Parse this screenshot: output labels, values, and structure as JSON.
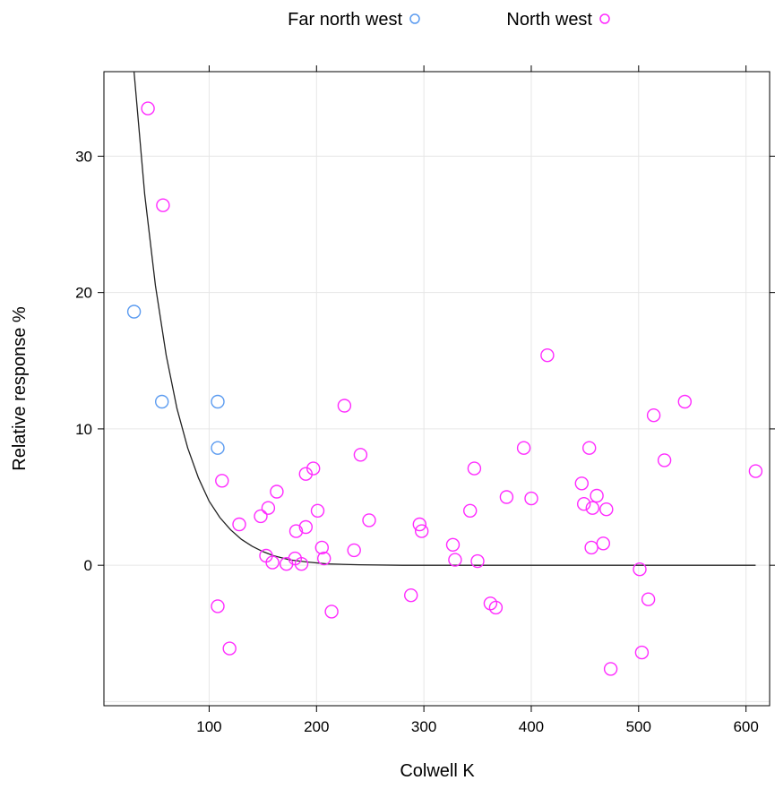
{
  "chart_data": {
    "type": "scatter",
    "xlabel": "Colwell K",
    "ylabel": "Relative response %",
    "xlim": [
      2,
      622
    ],
    "ylim": [
      -10.3,
      36.2
    ],
    "x_ticks": [
      100,
      200,
      300,
      400,
      500,
      600
    ],
    "y_ticks": [
      0,
      10,
      20,
      30
    ],
    "x_tick_labels": [
      "100",
      "200",
      "300",
      "400",
      "500",
      "600"
    ],
    "y_tick_labels": [
      "0",
      "10",
      "20",
      "30"
    ],
    "grid": true,
    "legend_position": "top",
    "series": [
      {
        "name": "Far north west",
        "color": "#5b9bf0",
        "points": [
          {
            "x": 30,
            "y": 18.6
          },
          {
            "x": 56,
            "y": 12.0
          },
          {
            "x": 108,
            "y": 12.0
          },
          {
            "x": 108,
            "y": 8.6
          }
        ]
      },
      {
        "name": "North west",
        "color": "#ff2bff",
        "points": [
          {
            "x": 43,
            "y": 33.5
          },
          {
            "x": 57,
            "y": 26.4
          },
          {
            "x": 108,
            "y": -3.0
          },
          {
            "x": 112,
            "y": 6.2
          },
          {
            "x": 119,
            "y": -6.1
          },
          {
            "x": 128,
            "y": 3.0
          },
          {
            "x": 148,
            "y": 3.6
          },
          {
            "x": 153,
            "y": 0.7
          },
          {
            "x": 155,
            "y": 4.2
          },
          {
            "x": 159,
            "y": 0.2
          },
          {
            "x": 163,
            "y": 5.4
          },
          {
            "x": 172,
            "y": 0.1
          },
          {
            "x": 180,
            "y": 0.5
          },
          {
            "x": 181,
            "y": 2.5
          },
          {
            "x": 186,
            "y": 0.1
          },
          {
            "x": 190,
            "y": 2.8
          },
          {
            "x": 190,
            "y": 6.7
          },
          {
            "x": 197,
            "y": 7.1
          },
          {
            "x": 201,
            "y": 4.0
          },
          {
            "x": 205,
            "y": 1.3
          },
          {
            "x": 207,
            "y": 0.5
          },
          {
            "x": 214,
            "y": -3.4
          },
          {
            "x": 226,
            "y": 11.7
          },
          {
            "x": 235,
            "y": 1.1
          },
          {
            "x": 241,
            "y": 8.1
          },
          {
            "x": 249,
            "y": 3.3
          },
          {
            "x": 288,
            "y": -2.2
          },
          {
            "x": 296,
            "y": 3.0
          },
          {
            "x": 298,
            "y": 2.5
          },
          {
            "x": 327,
            "y": 1.5
          },
          {
            "x": 329,
            "y": 0.4
          },
          {
            "x": 343,
            "y": 4.0
          },
          {
            "x": 347,
            "y": 7.1
          },
          {
            "x": 350,
            "y": 0.3
          },
          {
            "x": 362,
            "y": -2.8
          },
          {
            "x": 367,
            "y": -3.1
          },
          {
            "x": 377,
            "y": 5.0
          },
          {
            "x": 393,
            "y": 8.6
          },
          {
            "x": 400,
            "y": 4.9
          },
          {
            "x": 415,
            "y": 15.4
          },
          {
            "x": 447,
            "y": 6.0
          },
          {
            "x": 449,
            "y": 4.5
          },
          {
            "x": 454,
            "y": 8.6
          },
          {
            "x": 456,
            "y": 1.3
          },
          {
            "x": 457,
            "y": 4.2
          },
          {
            "x": 461,
            "y": 5.1
          },
          {
            "x": 467,
            "y": 1.6
          },
          {
            "x": 470,
            "y": 4.1
          },
          {
            "x": 474,
            "y": -7.6
          },
          {
            "x": 501,
            "y": -0.3
          },
          {
            "x": 503,
            "y": -6.4
          },
          {
            "x": 509,
            "y": -2.5
          },
          {
            "x": 514,
            "y": 11.0
          },
          {
            "x": 524,
            "y": 7.7
          },
          {
            "x": 543,
            "y": 12.0
          },
          {
            "x": 609,
            "y": 6.9
          }
        ]
      }
    ],
    "fitted_curve": {
      "color": "#222222",
      "points": [
        {
          "x": 30,
          "y": 36.2
        },
        {
          "x": 40,
          "y": 27.2
        },
        {
          "x": 50,
          "y": 20.5
        },
        {
          "x": 60,
          "y": 15.4
        },
        {
          "x": 70,
          "y": 11.5
        },
        {
          "x": 80,
          "y": 8.6
        },
        {
          "x": 90,
          "y": 6.4
        },
        {
          "x": 100,
          "y": 4.7
        },
        {
          "x": 110,
          "y": 3.5
        },
        {
          "x": 120,
          "y": 2.6
        },
        {
          "x": 130,
          "y": 1.9
        },
        {
          "x": 140,
          "y": 1.4
        },
        {
          "x": 150,
          "y": 1.0
        },
        {
          "x": 160,
          "y": 0.7
        },
        {
          "x": 175,
          "y": 0.4
        },
        {
          "x": 190,
          "y": 0.25
        },
        {
          "x": 210,
          "y": 0.1
        },
        {
          "x": 240,
          "y": 0.04
        },
        {
          "x": 280,
          "y": 0.0
        },
        {
          "x": 350,
          "y": 0.0
        },
        {
          "x": 450,
          "y": 0.0
        },
        {
          "x": 550,
          "y": 0.0
        },
        {
          "x": 609,
          "y": 0.0
        }
      ]
    }
  }
}
